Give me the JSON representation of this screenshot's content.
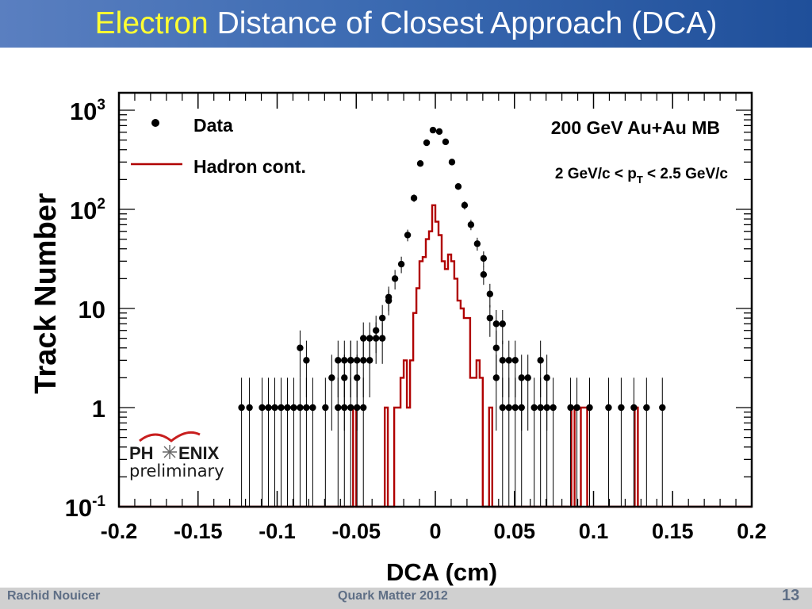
{
  "slide": {
    "title_accent": "Electron",
    "title_rest": " Distance of Closest Approach (DCA)",
    "footer_author": "Rachid Nouicer",
    "footer_event": "Quark Matter 2012",
    "page_number": "13"
  },
  "colors": {
    "title_bar": "#3c6bb2",
    "title_accent": "#ffff33",
    "hadron_line": "#b00000",
    "data_marker": "#000000"
  },
  "logo": {
    "text_top_left": "PH",
    "text_top_right": "ENIX",
    "text_bottom": "preliminary"
  },
  "chart_data": {
    "type": "scatter",
    "title": "",
    "xlabel": "DCA (cm)",
    "ylabel": "Track Number",
    "xlim": [
      -0.2,
      0.2
    ],
    "ylim": [
      0.1,
      1500
    ],
    "yscale": "log",
    "xticks": [
      -0.2,
      -0.15,
      -0.1,
      -0.05,
      0,
      0.05,
      0.1,
      0.15,
      0.2
    ],
    "xtick_labels": [
      "-0.2",
      "-0.15",
      "-0.1",
      "-0.05",
      "0",
      "0.05",
      "0.1",
      "0.15",
      "0.2"
    ],
    "yticks": [
      {
        "v": 1000,
        "base": "10",
        "exp": "3"
      },
      {
        "v": 100,
        "base": "10",
        "exp": "2"
      },
      {
        "v": 10,
        "base": "10",
        "exp": ""
      },
      {
        "v": 1,
        "base": "1",
        "exp": ""
      },
      {
        "v": 0.1,
        "base": "10",
        "exp": "-1"
      }
    ],
    "annotations": {
      "energy": "200 GeV  Au+Au MB",
      "pt_prefix": "2 GeV/c < p",
      "pt_sub": "T",
      "pt_suffix": " < 2.5 GeV/c"
    },
    "legend": {
      "placement": "top-left"
    },
    "series": [
      {
        "name": "Data",
        "style": "points",
        "x": [
          -0.1225,
          -0.1175,
          -0.1095,
          -0.1055,
          -0.1015,
          -0.0975,
          -0.0935,
          -0.0895,
          -0.0855,
          -0.0855,
          -0.0815,
          -0.0815,
          -0.0775,
          -0.0695,
          -0.0655,
          -0.0615,
          -0.0615,
          -0.0575,
          -0.0575,
          -0.0575,
          -0.0535,
          -0.0535,
          -0.0535,
          -0.0495,
          -0.0495,
          -0.0495,
          -0.0455,
          -0.0455,
          -0.0455,
          -0.0415,
          -0.0415,
          -0.0375,
          -0.0375,
          -0.0335,
          -0.0335,
          -0.0295,
          -0.0295,
          -0.0255,
          -0.0215,
          -0.0175,
          -0.0135,
          -0.0095,
          -0.0055,
          -0.0015,
          0.0025,
          0.0065,
          0.0105,
          0.0145,
          0.0185,
          0.0225,
          0.0265,
          0.0305,
          0.0305,
          0.0345,
          0.0345,
          0.0385,
          0.0385,
          0.0385,
          0.0425,
          0.0425,
          0.0425,
          0.0465,
          0.0465,
          0.0505,
          0.0505,
          0.0545,
          0.0545,
          0.0585,
          0.0625,
          0.0665,
          0.0665,
          0.0705,
          0.0705,
          0.0745,
          0.0855,
          0.0895,
          0.0975,
          0.1095,
          0.1175,
          0.1255,
          0.1335,
          0.1435
        ],
        "y": [
          1,
          1,
          1,
          1,
          1,
          1,
          1,
          1,
          1,
          4,
          3,
          1,
          1,
          1,
          2,
          1,
          3,
          1,
          2,
          3,
          1,
          3,
          3,
          1,
          2,
          3,
          5,
          3,
          1,
          5,
          3,
          6,
          5,
          8,
          5,
          13,
          12,
          20,
          28,
          55,
          130,
          290,
          470,
          630,
          610,
          480,
          300,
          170,
          110,
          70,
          45,
          32,
          22,
          14,
          8,
          7,
          4,
          2,
          3,
          1,
          7,
          3,
          1,
          3,
          1,
          2,
          1,
          2,
          1,
          1,
          3,
          2,
          1,
          1,
          1,
          1,
          1,
          1,
          1,
          1,
          1,
          1
        ]
      },
      {
        "name": "Hadron cont.",
        "style": "step",
        "x": [
          -0.2,
          -0.052,
          -0.05,
          -0.048,
          -0.032,
          -0.03,
          -0.026,
          -0.024,
          -0.022,
          -0.02,
          -0.018,
          -0.016,
          -0.014,
          -0.012,
          -0.01,
          -0.008,
          -0.006,
          -0.004,
          -0.002,
          0,
          0.002,
          0.004,
          0.006,
          0.008,
          0.01,
          0.012,
          0.014,
          0.016,
          0.018,
          0.02,
          0.022,
          0.024,
          0.026,
          0.028,
          0.03,
          0.034,
          0.036,
          0.038,
          0.086,
          0.088,
          0.092,
          0.094,
          0.096,
          0.126,
          0.128,
          0.2
        ],
        "y": [
          0.1,
          1,
          0.1,
          0.1,
          1,
          0.1,
          1,
          1,
          2,
          3,
          1,
          3,
          9,
          16,
          30,
          33,
          50,
          60,
          110,
          75,
          55,
          30,
          25,
          35,
          30,
          20,
          12,
          10,
          8,
          8,
          2,
          2,
          3,
          2,
          0.1,
          1,
          0.1,
          0.1,
          1,
          0.1,
          1,
          1,
          0.1,
          1,
          0.1,
          0.1
        ]
      }
    ]
  }
}
